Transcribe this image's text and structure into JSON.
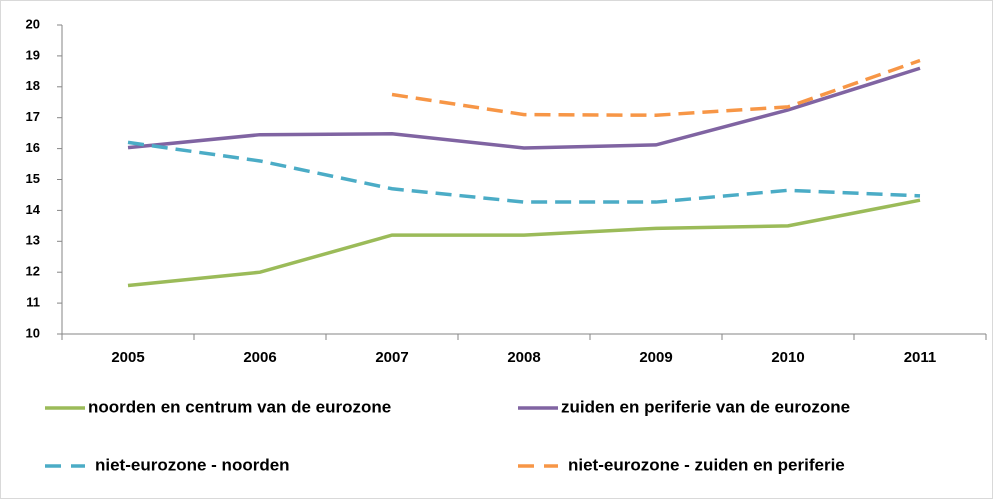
{
  "chart_data": {
    "type": "line",
    "categories": [
      "2005",
      "2006",
      "2007",
      "2008",
      "2009",
      "2010",
      "2011"
    ],
    "series": [
      {
        "name": "noorden en centrum van de eurozone",
        "color": "#9bbb59",
        "dash": false,
        "values": [
          11.57,
          12.0,
          13.2,
          13.2,
          13.42,
          13.5,
          14.33
        ]
      },
      {
        "name": "zuiden en periferie van de eurozone",
        "color": "#8064a2",
        "dash": false,
        "values": [
          16.03,
          16.45,
          16.48,
          16.02,
          16.12,
          17.25,
          18.6
        ]
      },
      {
        "name": "niet-eurozone - noorden",
        "color": "#4bacc6",
        "dash": true,
        "values": [
          16.2,
          15.6,
          14.7,
          14.27,
          14.27,
          14.65,
          14.47
        ]
      },
      {
        "name": "niet-eurozone - zuiden en periferie",
        "color": "#f79646",
        "dash": true,
        "values": [
          null,
          null,
          17.75,
          17.1,
          17.08,
          17.35,
          18.85
        ]
      }
    ],
    "ylim": [
      10,
      20
    ],
    "yticks": [
      10,
      11,
      12,
      13,
      14,
      15,
      16,
      17,
      18,
      19,
      20
    ],
    "grid": false,
    "legend": "bottom"
  }
}
